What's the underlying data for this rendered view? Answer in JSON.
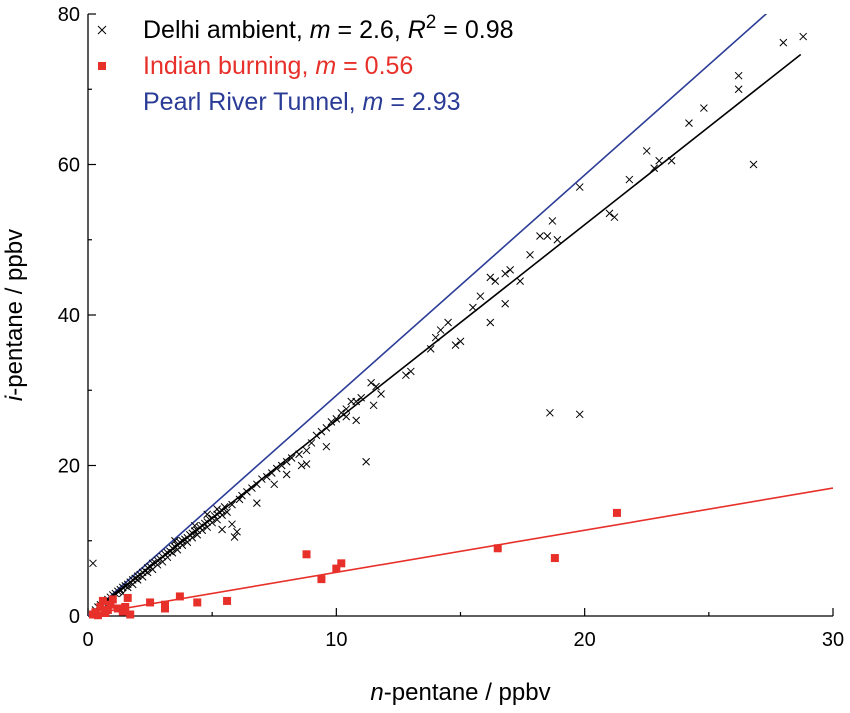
{
  "chart_data": {
    "type": "scatter",
    "xlabel": {
      "italic": "n",
      "rest": "-pentane / ppbv"
    },
    "ylabel": {
      "italic": "i",
      "rest": "-pentane / ppbv"
    },
    "xlim": [
      0,
      30
    ],
    "ylim": [
      0,
      80
    ],
    "xticks": [
      0,
      10,
      20,
      30
    ],
    "yticks": [
      0,
      20,
      40,
      60,
      80
    ],
    "minor_xticks": [
      5,
      15,
      25
    ],
    "minor_yticks": [
      10,
      30,
      50,
      70
    ],
    "grid": false,
    "legend_position": "top-left",
    "colors": {
      "delhi": "#000000",
      "burning": "#e8302a",
      "tunnel": "#2b3c97"
    },
    "series": [
      {
        "name": "Delhi ambient",
        "marker": "x",
        "legend": {
          "label": "Delhi ambient, ",
          "slope_sym": "m",
          "slope": " = 2.6, ",
          "r_sym": "R",
          "r_exp": "2",
          "r_val": " = 0.98"
        },
        "fit": {
          "slope": 2.6,
          "intercept": 0,
          "x_range": [
            0,
            28.7
          ]
        },
        "points": [
          [
            0.2,
            7.0
          ],
          [
            0.3,
            0.8
          ],
          [
            0.4,
            1.2
          ],
          [
            0.5,
            1.5
          ],
          [
            0.6,
            1.8
          ],
          [
            0.7,
            2.0
          ],
          [
            0.8,
            2.2
          ],
          [
            0.9,
            2.5
          ],
          [
            1.0,
            2.8
          ],
          [
            1.1,
            3.0
          ],
          [
            1.2,
            3.3
          ],
          [
            1.3,
            3.5
          ],
          [
            1.4,
            3.8
          ],
          [
            1.5,
            4.0
          ],
          [
            1.6,
            4.2
          ],
          [
            1.7,
            4.5
          ],
          [
            1.8,
            4.8
          ],
          [
            1.9,
            5.0
          ],
          [
            2.0,
            5.3
          ],
          [
            2.1,
            5.5
          ],
          [
            2.2,
            5.8
          ],
          [
            2.3,
            6.0
          ],
          [
            2.4,
            6.4
          ],
          [
            2.5,
            6.6
          ],
          [
            2.6,
            7.0
          ],
          [
            2.7,
            7.1
          ],
          [
            2.8,
            7.4
          ],
          [
            2.9,
            7.6
          ],
          [
            3.0,
            7.9
          ],
          [
            3.1,
            8.2
          ],
          [
            3.2,
            8.4
          ],
          [
            3.3,
            8.6
          ],
          [
            3.4,
            9.0
          ],
          [
            3.5,
            9.2
          ],
          [
            3.6,
            9.4
          ],
          [
            3.7,
            9.8
          ],
          [
            3.8,
            10.0
          ],
          [
            3.9,
            10.2
          ],
          [
            4.0,
            10.4
          ],
          [
            4.1,
            10.8
          ],
          [
            4.2,
            11.0
          ],
          [
            4.3,
            11.3
          ],
          [
            4.4,
            11.4
          ],
          [
            4.5,
            11.8
          ],
          [
            4.6,
            12.0
          ],
          [
            4.7,
            12.3
          ],
          [
            4.8,
            12.5
          ],
          [
            4.9,
            12.8
          ],
          [
            5.0,
            13.0
          ],
          [
            5.1,
            13.3
          ],
          [
            5.2,
            13.5
          ],
          [
            5.3,
            13.8
          ],
          [
            5.4,
            14.0
          ],
          [
            5.5,
            14.5
          ],
          [
            1.4,
            3.0
          ],
          [
            1.6,
            3.8
          ],
          [
            1.8,
            4.2
          ],
          [
            2.0,
            4.8
          ],
          [
            2.2,
            5.2
          ],
          [
            2.4,
            5.8
          ],
          [
            2.6,
            6.2
          ],
          [
            2.8,
            6.8
          ],
          [
            3.0,
            7.2
          ],
          [
            3.2,
            7.8
          ],
          [
            3.4,
            8.4
          ],
          [
            3.6,
            8.8
          ],
          [
            3.8,
            9.4
          ],
          [
            4.0,
            9.8
          ],
          [
            4.2,
            10.4
          ],
          [
            4.4,
            10.8
          ],
          [
            4.6,
            11.4
          ],
          [
            4.8,
            11.8
          ],
          [
            5.0,
            12.4
          ],
          [
            5.2,
            12.8
          ],
          [
            5.4,
            13.4
          ],
          [
            5.6,
            13.8
          ],
          [
            3.5,
            10.0
          ],
          [
            4.3,
            12.0
          ],
          [
            4.8,
            13.5
          ],
          [
            5.2,
            14.2
          ],
          [
            5.4,
            11.5
          ],
          [
            5.8,
            12.2
          ],
          [
            5.8,
            14.8
          ],
          [
            5.9,
            10.5
          ],
          [
            6.0,
            11.2
          ],
          [
            6.1,
            15.5
          ],
          [
            6.2,
            16.0
          ],
          [
            6.4,
            16.5
          ],
          [
            6.6,
            17.0
          ],
          [
            6.8,
            17.5
          ],
          [
            7.0,
            18.2
          ],
          [
            7.2,
            18.5
          ],
          [
            7.4,
            19.0
          ],
          [
            7.6,
            19.6
          ],
          [
            7.8,
            20.0
          ],
          [
            8.0,
            20.5
          ],
          [
            8.2,
            21.0
          ],
          [
            8.5,
            21.5
          ],
          [
            6.8,
            15.0
          ],
          [
            7.5,
            17.5
          ],
          [
            8.0,
            18.8
          ],
          [
            8.6,
            20.0
          ],
          [
            8.8,
            22.0
          ],
          [
            9.0,
            23.0
          ],
          [
            9.2,
            24.0
          ],
          [
            9.4,
            24.5
          ],
          [
            9.6,
            25.0
          ],
          [
            9.8,
            25.8
          ],
          [
            10.0,
            26.2
          ],
          [
            10.2,
            27.0
          ],
          [
            10.4,
            27.5
          ],
          [
            10.6,
            28.5
          ],
          [
            10.8,
            28.5
          ],
          [
            11.0,
            29.0
          ],
          [
            8.8,
            20.2
          ],
          [
            9.6,
            22.5
          ],
          [
            10.4,
            26.5
          ],
          [
            10.8,
            26.0
          ],
          [
            11.2,
            20.5
          ],
          [
            11.5,
            28.0
          ],
          [
            11.8,
            29.5
          ],
          [
            11.4,
            31.0
          ],
          [
            11.6,
            30.5
          ],
          [
            12.8,
            32.0
          ],
          [
            13.0,
            32.5
          ],
          [
            13.8,
            35.5
          ],
          [
            14.0,
            37.0
          ],
          [
            14.2,
            38.0
          ],
          [
            14.5,
            39.0
          ],
          [
            15.0,
            36.5
          ],
          [
            14.8,
            36.0
          ],
          [
            15.5,
            41.0
          ],
          [
            15.8,
            42.5
          ],
          [
            16.2,
            45.0
          ],
          [
            16.4,
            44.5
          ],
          [
            16.8,
            45.5
          ],
          [
            17.0,
            46.0
          ],
          [
            17.4,
            44.5
          ],
          [
            17.8,
            48.0
          ],
          [
            16.2,
            39.0
          ],
          [
            16.8,
            41.5
          ],
          [
            18.2,
            50.5
          ],
          [
            18.5,
            50.5
          ],
          [
            18.7,
            52.5
          ],
          [
            18.9,
            50.0
          ],
          [
            19.8,
            57.0
          ],
          [
            21.0,
            53.5
          ],
          [
            21.2,
            53.0
          ],
          [
            21.8,
            58.0
          ],
          [
            22.5,
            61.8
          ],
          [
            22.8,
            59.5
          ],
          [
            23.0,
            60.5
          ],
          [
            23.5,
            60.5
          ],
          [
            24.8,
            67.5
          ],
          [
            26.2,
            71.8
          ],
          [
            26.2,
            70.0
          ],
          [
            26.8,
            60.0
          ],
          [
            28.0,
            76.2
          ],
          [
            28.8,
            77.0
          ],
          [
            24.2,
            65.5
          ],
          [
            18.6,
            27.0
          ],
          [
            19.8,
            26.8
          ]
        ]
      },
      {
        "name": "Indian burning",
        "marker": "square",
        "legend": {
          "label": "Indian burning, ",
          "slope_sym": "m",
          "slope": " = 0.56"
        },
        "fit": {
          "slope": 0.56,
          "intercept": 0.2,
          "x_range": [
            0,
            30
          ]
        },
        "points": [
          [
            0.2,
            0.2
          ],
          [
            0.3,
            0.5
          ],
          [
            0.4,
            0.1
          ],
          [
            0.5,
            1.2
          ],
          [
            0.6,
            2.0
          ],
          [
            0.7,
            0.4
          ],
          [
            0.8,
            0.8
          ],
          [
            0.9,
            1.5
          ],
          [
            1.0,
            2.2
          ],
          [
            1.2,
            1.0
          ],
          [
            1.4,
            0.6
          ],
          [
            1.5,
            1.2
          ],
          [
            1.6,
            2.4
          ],
          [
            1.7,
            0.2
          ],
          [
            2.5,
            1.8
          ],
          [
            3.1,
            1.5
          ],
          [
            3.1,
            1.0
          ],
          [
            3.7,
            2.6
          ],
          [
            4.4,
            1.8
          ],
          [
            5.6,
            2.0
          ],
          [
            8.8,
            8.2
          ],
          [
            9.4,
            4.9
          ],
          [
            10.0,
            6.3
          ],
          [
            10.2,
            7.0
          ],
          [
            16.5,
            9.0
          ],
          [
            18.8,
            7.7
          ],
          [
            21.3,
            13.7
          ]
        ]
      },
      {
        "name": "Pearl River Tunnel",
        "marker": "none",
        "legend": {
          "label": "Pearl River Tunnel, ",
          "slope_sym": "m",
          "slope": " = 2.93"
        },
        "fit": {
          "slope": 2.93,
          "intercept": 0,
          "x_range": [
            0,
            27.7
          ]
        },
        "points": []
      }
    ]
  }
}
